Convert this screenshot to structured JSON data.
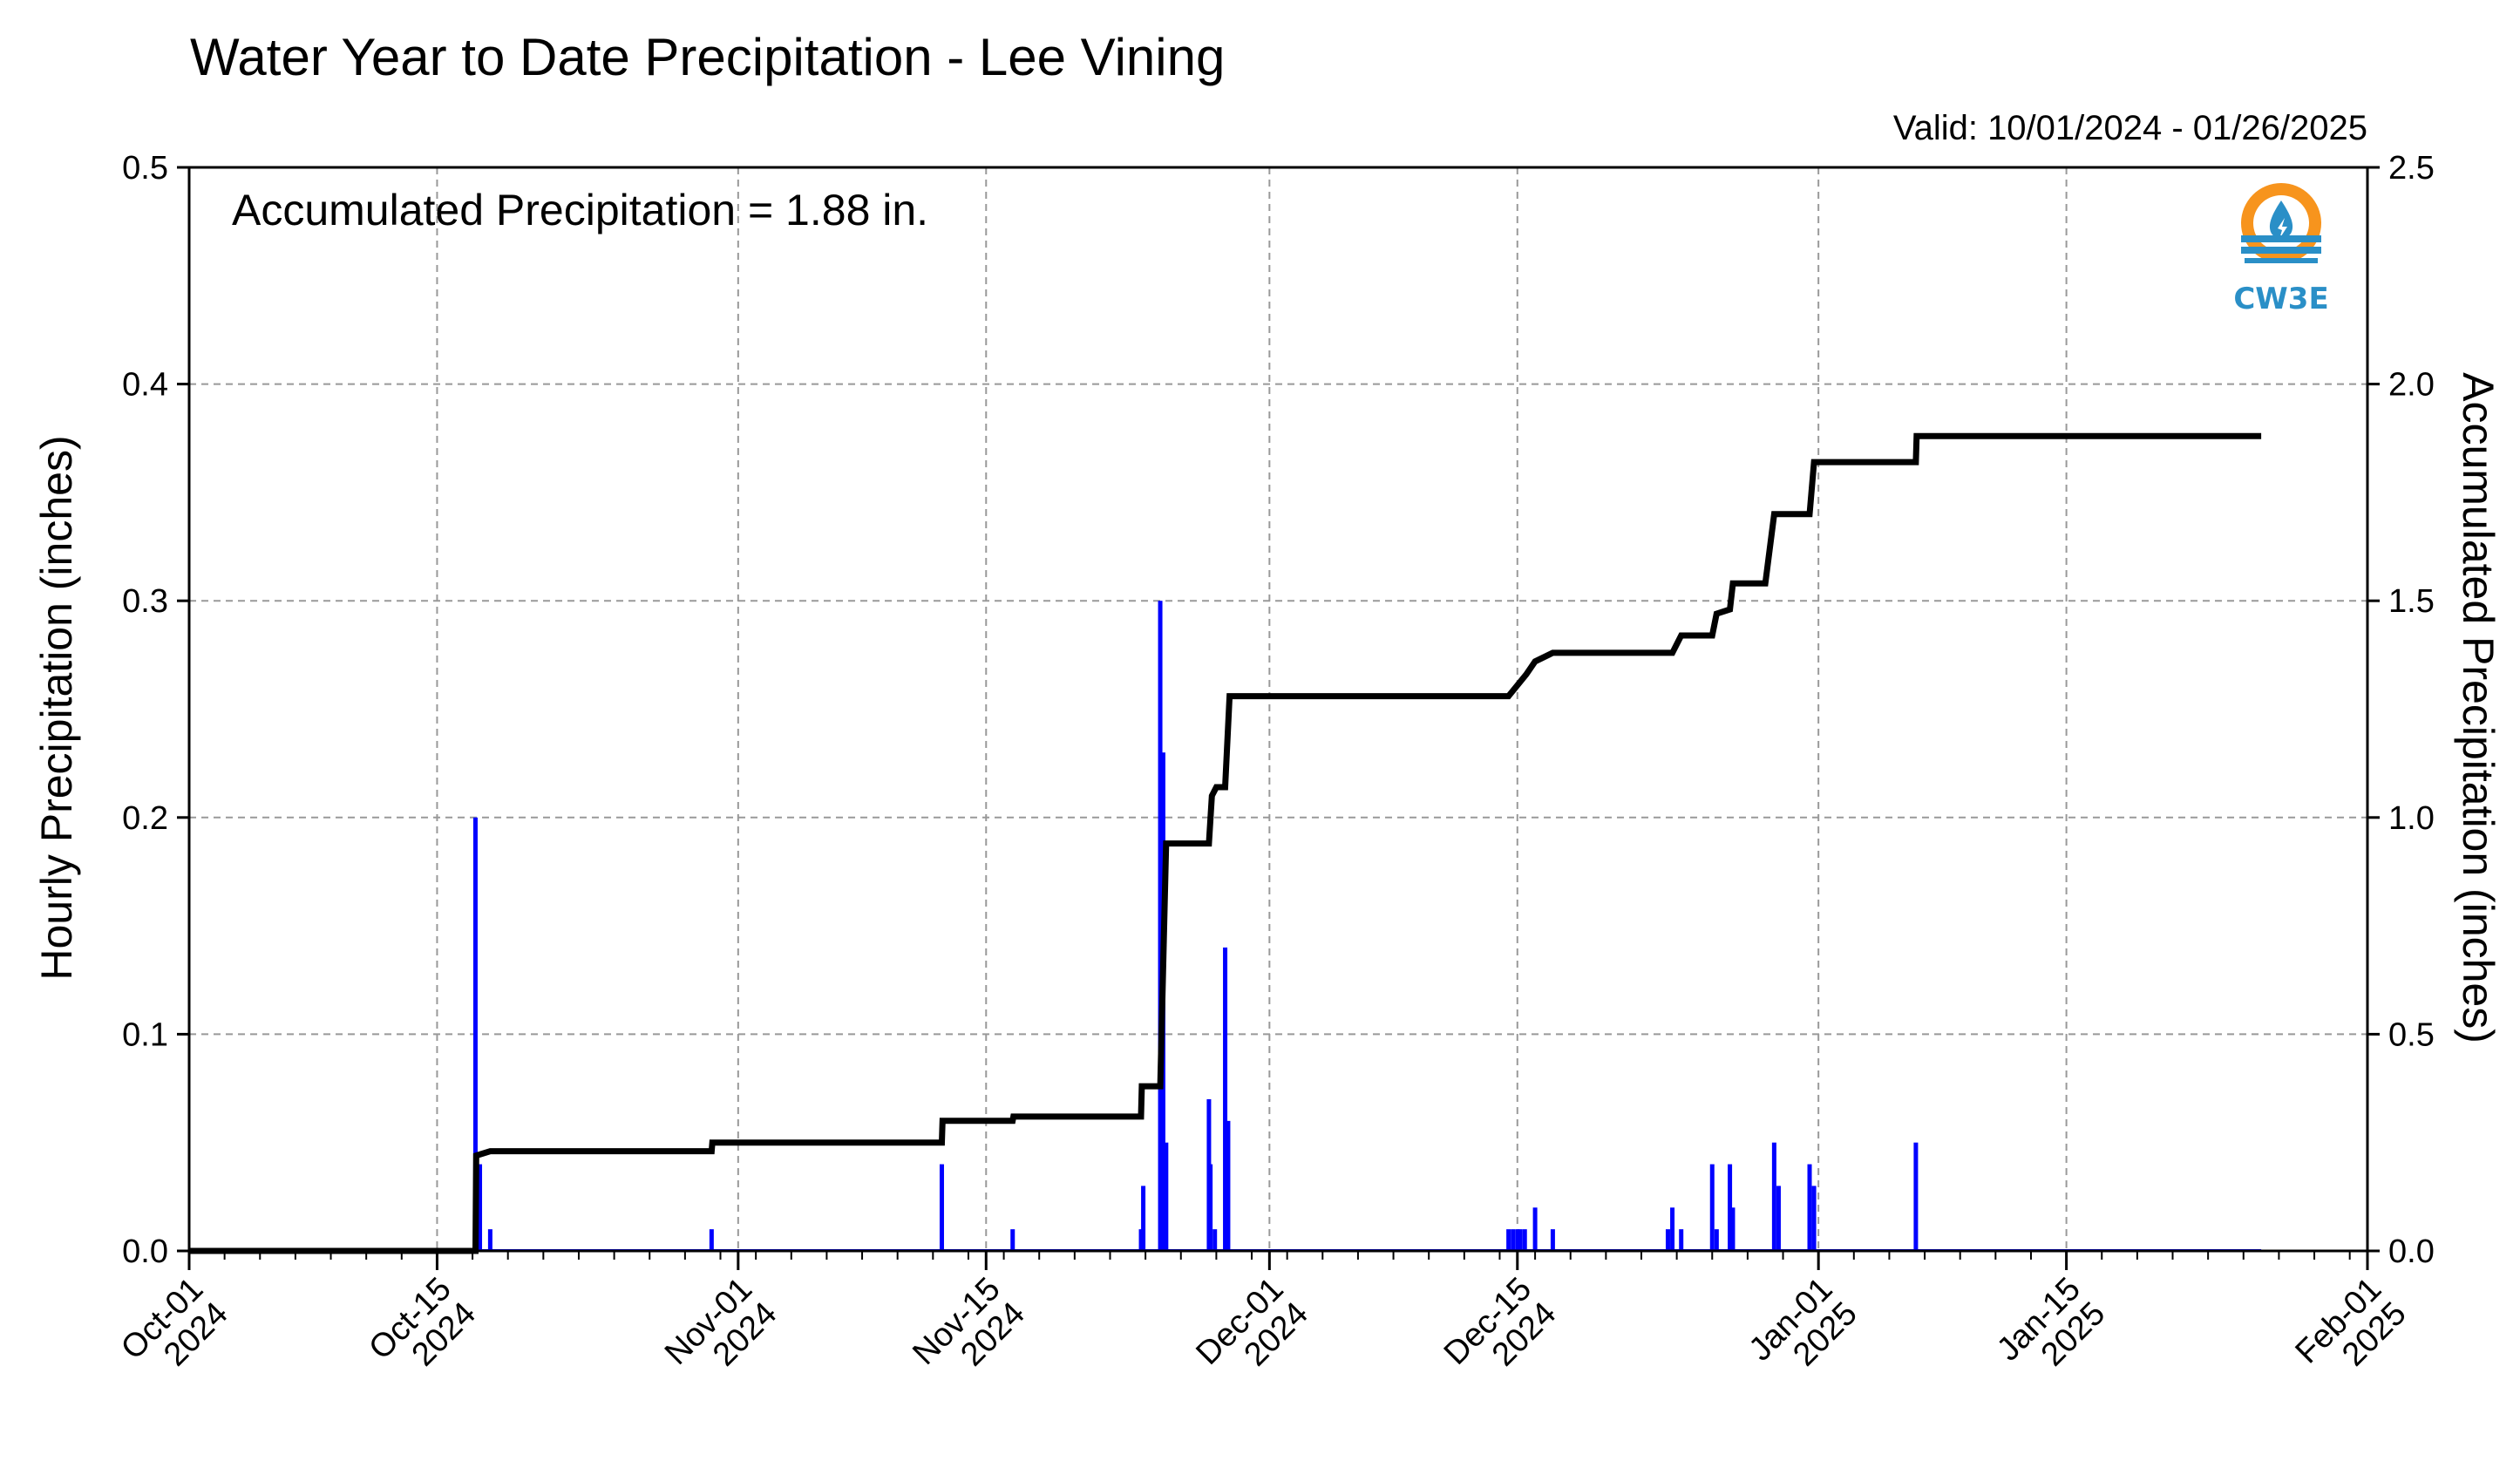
{
  "title": "Water Year to Date Precipitation - Lee Vining",
  "valid": "Valid: 10/01/2024 - 01/26/2025",
  "annotation": "Accumulated Precipitation = 1.88 in.",
  "logo": {
    "text": "CW3E",
    "ring_color": "#F7941D",
    "wave_color": "#2A8FC7"
  },
  "chart_data": {
    "type": "bar",
    "x_range": [
      "2024-10-01",
      "2025-02-01"
    ],
    "left_axis": {
      "label": "Hourly Precipitation (inches)",
      "color": "#0000FF",
      "ylim": [
        0,
        0.5
      ],
      "ticks": [
        "0.0",
        "0.1",
        "0.2",
        "0.3",
        "0.4",
        "0.5"
      ]
    },
    "right_axis": {
      "label": "Accumulated Precipitation (inches)",
      "ylim": [
        0,
        2.5
      ],
      "ticks": [
        "0.0",
        "0.5",
        "1.0",
        "1.5",
        "2.0",
        "2.5"
      ]
    },
    "x_ticks": [
      {
        "date": "2024-10-01",
        "line1": "Oct-01",
        "line2": "2024"
      },
      {
        "date": "2024-10-15",
        "line1": "Oct-15",
        "line2": "2024"
      },
      {
        "date": "2024-11-01",
        "line1": "Nov-01",
        "line2": "2024"
      },
      {
        "date": "2024-11-15",
        "line1": "Nov-15",
        "line2": "2024"
      },
      {
        "date": "2024-12-01",
        "line1": "Dec-01",
        "line2": "2024"
      },
      {
        "date": "2024-12-15",
        "line1": "Dec-15",
        "line2": "2024"
      },
      {
        "date": "2025-01-01",
        "line1": "Jan-01",
        "line2": "2025"
      },
      {
        "date": "2025-01-15",
        "line1": "Jan-15",
        "line2": "2025"
      },
      {
        "date": "2025-02-01",
        "line1": "Feb-01",
        "line2": "2025"
      }
    ],
    "grid": true,
    "series": [
      {
        "type": "bar",
        "axis": "left",
        "color": "#0000FF",
        "points": [
          [
            "2024-10-17 04:00",
            0.2
          ],
          [
            "2024-10-17 10:00",
            0.04
          ],
          [
            "2024-10-18 00:00",
            0.01
          ],
          [
            "2024-10-30 12:00",
            0.01
          ],
          [
            "2024-11-12 12:00",
            0.04
          ],
          [
            "2024-11-16 12:00",
            0.01
          ],
          [
            "2024-11-23 18:00",
            0.01
          ],
          [
            "2024-11-23 21:00",
            0.03
          ],
          [
            "2024-11-24 20:00",
            0.3
          ],
          [
            "2024-11-25 00:00",
            0.23
          ],
          [
            "2024-11-25 04:00",
            0.05
          ],
          [
            "2024-11-27 14:00",
            0.07
          ],
          [
            "2024-11-27 16:00",
            0.04
          ],
          [
            "2024-11-27 22:00",
            0.01
          ],
          [
            "2024-11-28 12:00",
            0.14
          ],
          [
            "2024-11-28 16:00",
            0.06
          ],
          [
            "2024-12-14 12:00",
            0.01
          ],
          [
            "2024-12-14 18:00",
            0.01
          ],
          [
            "2024-12-15 00:00",
            0.01
          ],
          [
            "2024-12-15 04:00",
            0.01
          ],
          [
            "2024-12-15 10:00",
            0.01
          ],
          [
            "2024-12-16 00:00",
            0.02
          ],
          [
            "2024-12-17 00:00",
            0.01
          ],
          [
            "2024-12-23 12:00",
            0.01
          ],
          [
            "2024-12-23 18:00",
            0.02
          ],
          [
            "2024-12-24 06:00",
            0.01
          ],
          [
            "2024-12-26 00:00",
            0.04
          ],
          [
            "2024-12-26 06:00",
            0.01
          ],
          [
            "2024-12-27 00:00",
            0.04
          ],
          [
            "2024-12-27 04:00",
            0.02
          ],
          [
            "2024-12-29 12:00",
            0.05
          ],
          [
            "2024-12-29 18:00",
            0.03
          ],
          [
            "2024-12-31 12:00",
            0.04
          ],
          [
            "2024-12-31 18:00",
            0.03
          ],
          [
            "2025-01-06 12:00",
            0.05
          ]
        ]
      },
      {
        "type": "step",
        "axis": "right",
        "color": "#000000",
        "points": [
          [
            "2024-10-01 00:00",
            0.0
          ],
          [
            "2024-10-17 04:00",
            0.0
          ],
          [
            "2024-10-17 05:00",
            0.22
          ],
          [
            "2024-10-18 00:00",
            0.23
          ],
          [
            "2024-10-30 12:00",
            0.23
          ],
          [
            "2024-10-30 13:00",
            0.25
          ],
          [
            "2024-11-12 12:00",
            0.25
          ],
          [
            "2024-11-12 13:00",
            0.3
          ],
          [
            "2024-11-16 12:00",
            0.3
          ],
          [
            "2024-11-16 13:00",
            0.31
          ],
          [
            "2024-11-23 18:00",
            0.31
          ],
          [
            "2024-11-23 19:00",
            0.38
          ],
          [
            "2024-11-24 20:00",
            0.38
          ],
          [
            "2024-11-25 04:00",
            0.94
          ],
          [
            "2024-11-27 14:00",
            0.94
          ],
          [
            "2024-11-27 18:00",
            1.05
          ],
          [
            "2024-11-28 00:00",
            1.07
          ],
          [
            "2024-11-28 12:00",
            1.07
          ],
          [
            "2024-11-28 18:00",
            1.28
          ],
          [
            "2024-12-14 12:00",
            1.28
          ],
          [
            "2024-12-15 12:00",
            1.33
          ],
          [
            "2024-12-16 00:00",
            1.36
          ],
          [
            "2024-12-17 00:00",
            1.38
          ],
          [
            "2024-12-23 18:00",
            1.38
          ],
          [
            "2024-12-24 06:00",
            1.42
          ],
          [
            "2024-12-26 00:00",
            1.42
          ],
          [
            "2024-12-26 06:00",
            1.47
          ],
          [
            "2024-12-27 00:00",
            1.48
          ],
          [
            "2024-12-27 04:00",
            1.54
          ],
          [
            "2024-12-29 00:00",
            1.54
          ],
          [
            "2024-12-29 12:00",
            1.7
          ],
          [
            "2024-12-31 12:00",
            1.7
          ],
          [
            "2024-12-31 18:00",
            1.82
          ],
          [
            "2025-01-06 12:00",
            1.82
          ],
          [
            "2025-01-06 13:00",
            1.88
          ],
          [
            "2025-01-26 00:00",
            1.88
          ]
        ]
      }
    ]
  }
}
